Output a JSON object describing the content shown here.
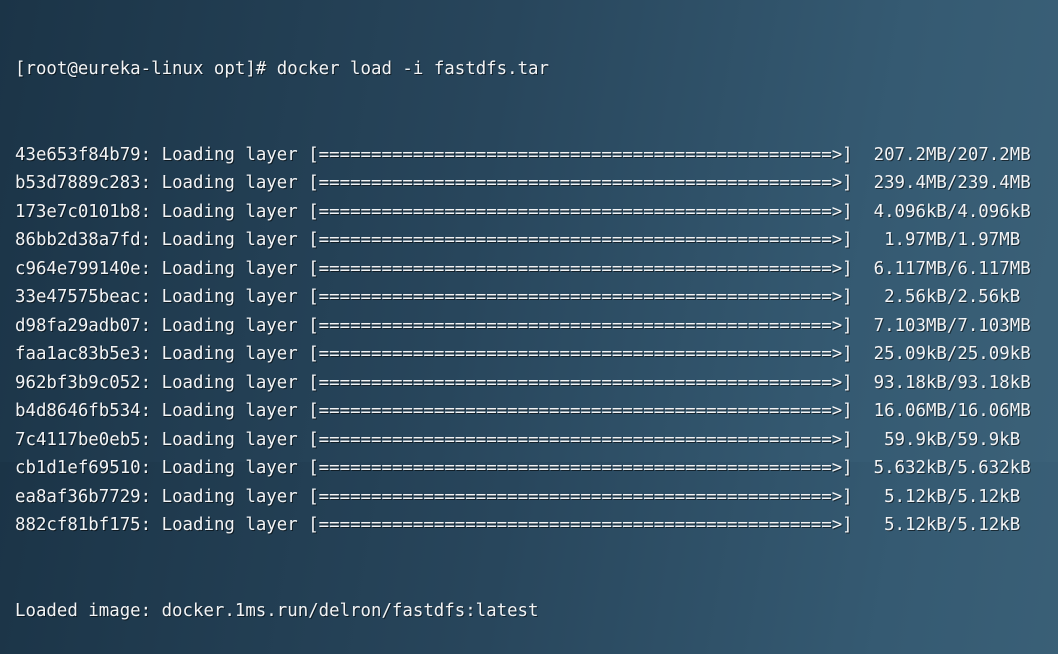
{
  "terminal": {
    "prompt": "[root@eureka-linux opt]# ",
    "command": "docker load -i fastdfs.tar",
    "status_label": "Loading layer",
    "bar": "[=================================================>]",
    "layers": [
      {
        "id": "43e653f84b79",
        "size": "207.2MB/207.2MB"
      },
      {
        "id": "b53d7889c283",
        "size": "239.4MB/239.4MB"
      },
      {
        "id": "173e7c0101b8",
        "size": "4.096kB/4.096kB"
      },
      {
        "id": "86bb2d38a7fd",
        "size": "1.97MB/1.97MB"
      },
      {
        "id": "c964e799140e",
        "size": "6.117MB/6.117MB"
      },
      {
        "id": "33e47575beac",
        "size": "2.56kB/2.56kB"
      },
      {
        "id": "d98fa29adb07",
        "size": "7.103MB/7.103MB"
      },
      {
        "id": "faa1ac83b5e3",
        "size": "25.09kB/25.09kB"
      },
      {
        "id": "962bf3b9c052",
        "size": "93.18kB/93.18kB"
      },
      {
        "id": "b4d8646fb534",
        "size": "16.06MB/16.06MB"
      },
      {
        "id": "7c4117be0eb5",
        "size": "59.9kB/59.9kB"
      },
      {
        "id": "cb1d1ef69510",
        "size": "5.632kB/5.632kB"
      },
      {
        "id": "ea8af36b7729",
        "size": "5.12kB/5.12kB"
      },
      {
        "id": "882cf81bf175",
        "size": "5.12kB/5.12kB"
      }
    ],
    "result": "Loaded image: docker.1ms.run/delron/fastdfs:latest"
  }
}
